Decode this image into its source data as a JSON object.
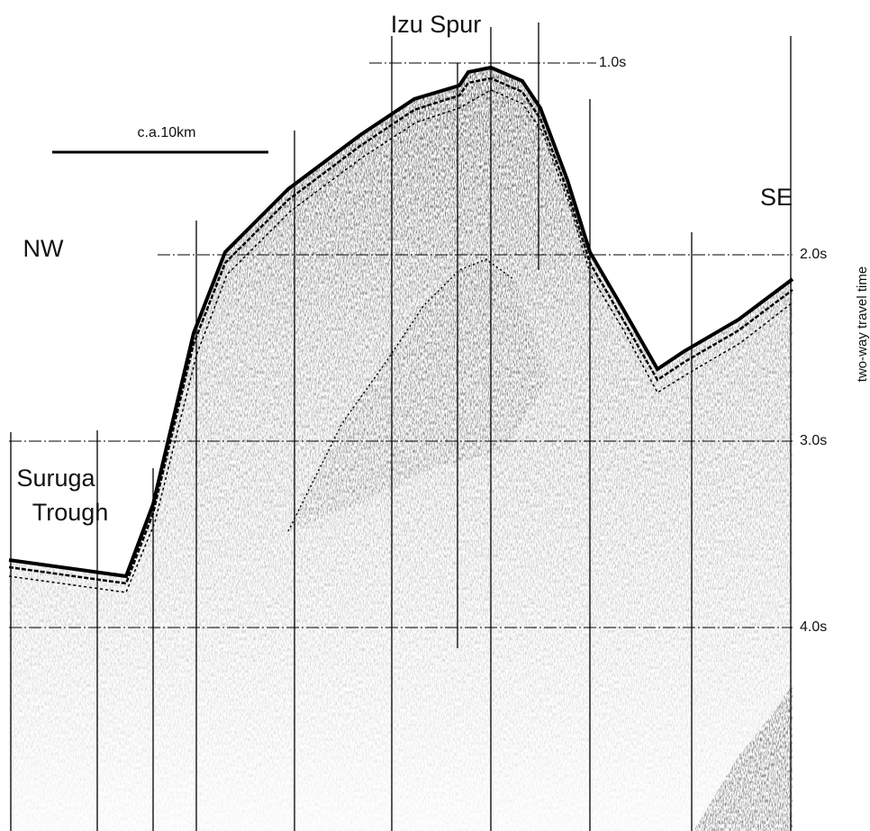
{
  "figure": {
    "title": "Izu Spur",
    "scale_bar": "c.a.10km",
    "directions": {
      "left": "NW",
      "right": "SE"
    },
    "trough_label": [
      "Suruga",
      "Trough"
    ],
    "time_axis": {
      "label": "two-way travel time",
      "ticks": [
        "1.0s",
        "2.0s",
        "3.0s",
        "4.0s"
      ]
    }
  }
}
